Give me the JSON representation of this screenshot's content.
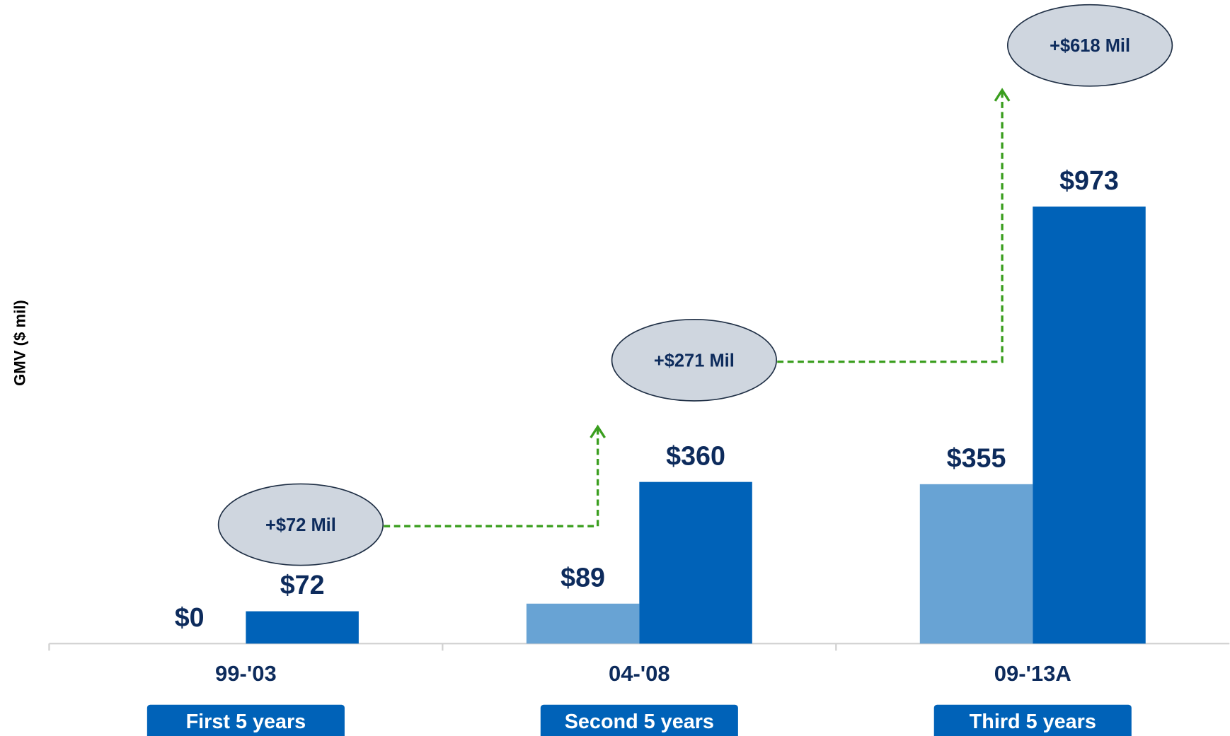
{
  "chart_data": {
    "type": "bar",
    "y_label": "GMV ($ mil)",
    "categories": [
      "99-'03",
      "04-'08",
      "09-'13A"
    ],
    "period_labels": [
      "First 5 years",
      "Second 5 years",
      "Third 5 years"
    ],
    "series": [
      {
        "color": "#68a3d4",
        "values": [
          0,
          89,
          355
        ],
        "value_labels": [
          "$0",
          "$89",
          "$355"
        ]
      },
      {
        "color": "#0062b8",
        "values": [
          72,
          360,
          973
        ],
        "value_labels": [
          "$72",
          "$360",
          "$973"
        ]
      }
    ],
    "annotations": [
      "+$72 Mil",
      "+$271 Mil",
      "+$618 Mil"
    ],
    "ylim": [
      0,
      1400
    ]
  }
}
